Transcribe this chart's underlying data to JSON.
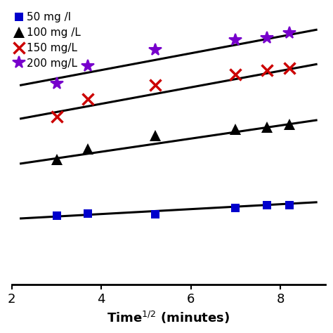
{
  "xlim": [
    2,
    9
  ],
  "ylim": [
    0.5,
    5.8
  ],
  "xticks": [
    2,
    4,
    6,
    8
  ],
  "series": [
    {
      "label": "50 mg /l",
      "color": "#0000cc",
      "marker": "s",
      "markersize": 9,
      "markeredgewidth": 0,
      "x": [
        3.0,
        3.7,
        5.2,
        7.0,
        7.7,
        8.2
      ],
      "y": [
        1.82,
        1.87,
        1.85,
        1.97,
        2.02,
        2.03
      ],
      "fit_x": [
        2.2,
        8.8
      ],
      "fit_y": [
        1.77,
        2.08
      ]
    },
    {
      "label": "100 mg /L",
      "color": "#000000",
      "marker": "^",
      "markersize": 11,
      "markeredgewidth": 0,
      "x": [
        3.0,
        3.7,
        5.2,
        7.0,
        7.7,
        8.2
      ],
      "y": [
        2.9,
        3.1,
        3.35,
        3.47,
        3.52,
        3.57
      ],
      "fit_x": [
        2.2,
        8.8
      ],
      "fit_y": [
        2.82,
        3.65
      ]
    },
    {
      "label": "150 mg/L",
      "color": "#cc0000",
      "marker": "x",
      "markersize": 11,
      "markeredgewidth": 2.5,
      "x": [
        3.0,
        3.7,
        5.2,
        7.0,
        7.7,
        8.2
      ],
      "y": [
        3.72,
        4.05,
        4.32,
        4.52,
        4.6,
        4.65
      ],
      "fit_x": [
        2.2,
        8.8
      ],
      "fit_y": [
        3.68,
        4.72
      ]
    },
    {
      "label": "200 mg/L",
      "color": "#7700cc",
      "marker": "*",
      "markersize": 13,
      "markeredgewidth": 1.5,
      "x": [
        3.0,
        3.7,
        5.2,
        7.0,
        7.7,
        8.2
      ],
      "y": [
        4.35,
        4.68,
        5.0,
        5.18,
        5.22,
        5.32
      ],
      "fit_x": [
        2.2,
        8.8
      ],
      "fit_y": [
        4.32,
        5.38
      ]
    }
  ],
  "background_color": "#ffffff"
}
